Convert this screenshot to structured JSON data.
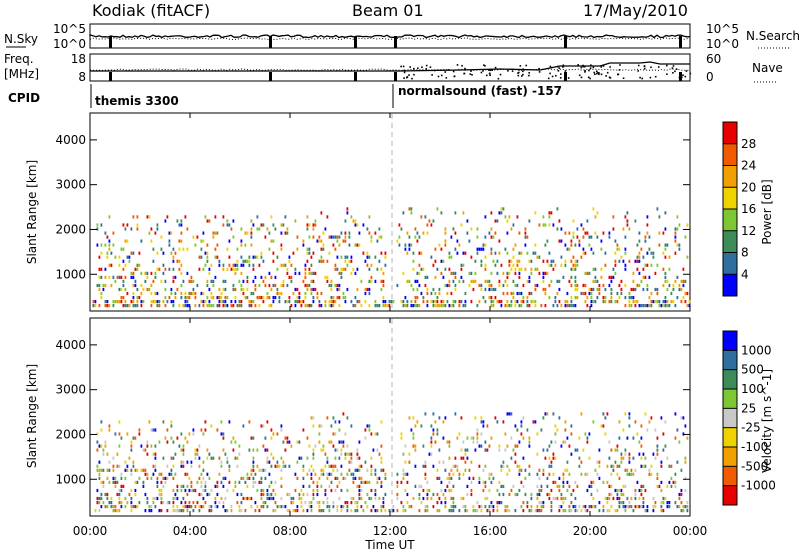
{
  "header": {
    "station": "Kodiak (fitACF)",
    "beam": "Beam 01",
    "date": "17/May/2010"
  },
  "colors": {
    "power_scale": [
      "#0000ff",
      "#2f6fa0",
      "#3c8c5a",
      "#7dc832",
      "#f0d200",
      "#f0a000",
      "#f05a00",
      "#e60000"
    ],
    "velocity_scale": [
      "#e60000",
      "#f05a00",
      "#f0a000",
      "#f0d200",
      "#c8c8c8",
      "#7dc832",
      "#3c8c5a",
      "#2f6fa0",
      "#0000ff"
    ],
    "grid": "#000000",
    "midnight_line": "#b4b4b4"
  },
  "chart_data": [
    {
      "type": "line",
      "panel": "noise",
      "left_label": "N.Sky",
      "right_label": "N.Search",
      "left_ticks": [
        "10^5",
        "10^0"
      ],
      "right_ticks": [
        "10^5",
        "10^0"
      ],
      "y_scale": "log"
    },
    {
      "type": "line",
      "panel": "frequency-nave",
      "left_label": "Freq.",
      "left_unit": "[MHz]",
      "right_label": "Nave",
      "left_ticks": [
        18,
        8
      ],
      "right_ticks": [
        60,
        0
      ],
      "cpid_label": "CPID",
      "programs": [
        {
          "label": "themis 3300",
          "start_hour": 0
        },
        {
          "label": "normalsound (fast) -157",
          "start_hour": 12
        }
      ]
    },
    {
      "type": "heatmap",
      "panel": "power",
      "ylabel": "Slant Range [km]",
      "y_ticks": [
        1000,
        2000,
        3000,
        4000
      ],
      "ylim": [
        180,
        4600
      ],
      "colorbar_label": "Power [dB]",
      "colorbar_ticks": [
        4,
        8,
        12,
        16,
        20,
        24,
        28
      ]
    },
    {
      "type": "heatmap",
      "panel": "velocity",
      "ylabel": "Slant Range [km]",
      "y_ticks": [
        1000,
        2000,
        3000,
        4000
      ],
      "ylim": [
        180,
        4600
      ],
      "colorbar_label": "Velocity [m s^-1]",
      "colorbar_ticks": [
        1000,
        500,
        100,
        25,
        -25,
        -100,
        -500,
        -1000
      ]
    }
  ],
  "x_axis": {
    "label": "Time UT",
    "ticks": [
      "00:00",
      "04:00",
      "08:00",
      "12:00",
      "16:00",
      "20:00",
      "00:00"
    ],
    "xlim_hours": [
      0,
      24
    ]
  }
}
